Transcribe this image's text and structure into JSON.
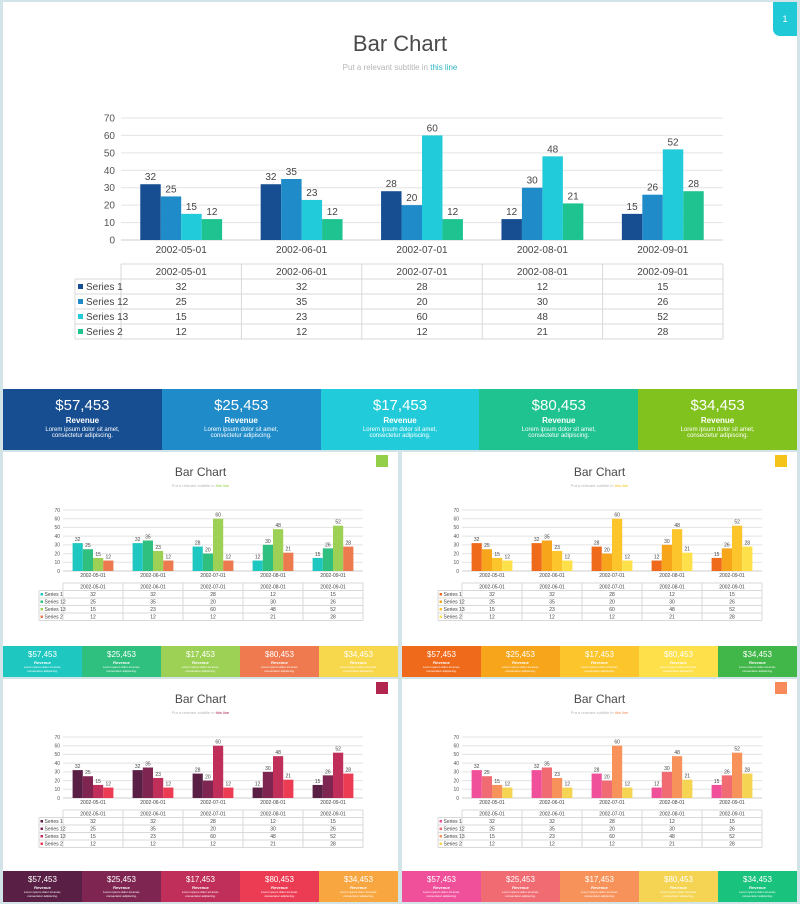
{
  "page_number": "1",
  "title": "Bar Chart",
  "subtitle_prefix": "Put a relevant subtitle in",
  "subtitle_highlight": "this line",
  "stats": [
    {
      "value": "$57,453",
      "label": "Revenue",
      "desc1": "Lorem ipsum dolor sit amet,",
      "desc2": "consectetur adipiscing."
    },
    {
      "value": "$25,453",
      "label": "Revenue",
      "desc1": "Lorem ipsum dolor sit amet,",
      "desc2": "consectetur adipiscing."
    },
    {
      "value": "$17,453",
      "label": "Revenue",
      "desc1": "Lorem ipsum dolor sit amet,",
      "desc2": "consectetur adipiscing."
    },
    {
      "value": "$80,453",
      "label": "Revenue",
      "desc1": "Lorem ipsum dolor sit amet,",
      "desc2": "consectetur adipiscing."
    },
    {
      "value": "$34,453",
      "label": "Revenue",
      "desc1": "Lorem ipsum dolor sit amet,",
      "desc2": "consectetur adipiscing."
    }
  ],
  "chart_data": {
    "type": "bar",
    "categories": [
      "2002-05-01",
      "2002-06-01",
      "2002-07-01",
      "2002-08-01",
      "2002-09-01"
    ],
    "series": [
      {
        "name": "Series 1",
        "values": [
          32,
          32,
          28,
          12,
          15
        ]
      },
      {
        "name": "Series 12",
        "values": [
          25,
          35,
          20,
          30,
          26
        ]
      },
      {
        "name": "Series 13",
        "values": [
          15,
          23,
          60,
          48,
          52
        ]
      },
      {
        "name": "Series 2",
        "values": [
          12,
          12,
          12,
          21,
          28
        ]
      }
    ],
    "ylim": [
      0,
      70
    ],
    "yticks": [
      0,
      10,
      20,
      30,
      40,
      50,
      60,
      70
    ],
    "grid": true,
    "data_labels": true,
    "data_table": true
  },
  "themes": {
    "main": {
      "badge": "#1fc9d6",
      "series": [
        "#174e91",
        "#1f8bc8",
        "#22cbd9",
        "#1fc38f"
      ],
      "stats": [
        "#174e91",
        "#1f8bc8",
        "#22cbd9",
        "#1fc38f",
        "#82c21e"
      ]
    },
    "green": {
      "badge": "#94cf4a",
      "series": [
        "#1ec8c0",
        "#2fbf7e",
        "#9dd155",
        "#ec7a4e"
      ],
      "stats": [
        "#1ec8c0",
        "#2fbf7e",
        "#9dd155",
        "#ef7a4f",
        "#f7d84d"
      ]
    },
    "orange": {
      "badge": "#f5c41a",
      "series": [
        "#f06a1c",
        "#f7a51b",
        "#fbc52b",
        "#fde04a"
      ],
      "stats": [
        "#f06a1c",
        "#f7a51b",
        "#fbc52b",
        "#fde04a",
        "#41b649"
      ]
    },
    "berry": {
      "badge": "#b2254e",
      "series": [
        "#5a1f44",
        "#7e2651",
        "#bf2f5a",
        "#ec3c54"
      ],
      "stats": [
        "#5a1f44",
        "#7e2651",
        "#bf2f5a",
        "#ec3c54",
        "#f8a640"
      ]
    },
    "pink": {
      "badge": "#f68a5a",
      "series": [
        "#f0509a",
        "#f16b73",
        "#f7925a",
        "#f4d452"
      ],
      "stats": [
        "#f0509a",
        "#f16b73",
        "#f7925a",
        "#f4d452",
        "#19c27d"
      ]
    }
  }
}
